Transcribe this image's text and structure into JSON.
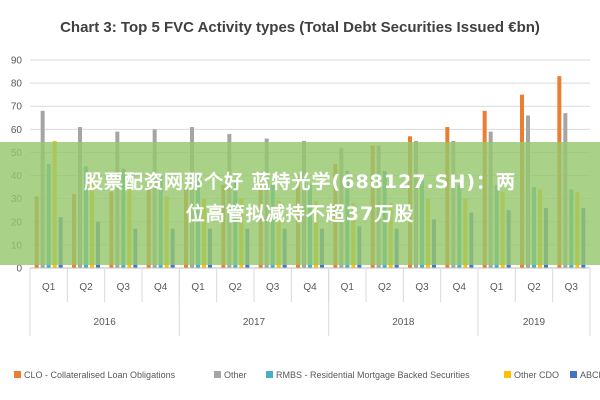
{
  "chart_data": {
    "type": "bar",
    "title": "Chart 3: Top 5 FVC Activity types (Total Debt Securities Issued €bn)",
    "categories": [
      "Q1",
      "Q2",
      "Q3",
      "Q4",
      "Q1",
      "Q2",
      "Q3",
      "Q4",
      "Q1",
      "Q2",
      "Q3",
      "Q4",
      "Q1",
      "Q2",
      "Q3"
    ],
    "groups": [
      {
        "label": "2016",
        "span": 4
      },
      {
        "label": "2017",
        "span": 4
      },
      {
        "label": "2018",
        "span": 4
      },
      {
        "label": "2019",
        "span": 3
      }
    ],
    "ylim": [
      0,
      90
    ],
    "yticks": [
      0,
      10,
      20,
      30,
      40,
      50,
      60,
      70,
      80,
      90
    ],
    "grid": true,
    "legend_position": "bottom",
    "series": [
      {
        "name": "CLO - Collateralised Loan Obligations",
        "color": "#ed7d31",
        "values": [
          31,
          32,
          33,
          34,
          35,
          36,
          38,
          40,
          45,
          53,
          57,
          61,
          68,
          75,
          83
        ]
      },
      {
        "name": "Other",
        "color": "#a5a5a5",
        "values": [
          68,
          61,
          59,
          60,
          61,
          58,
          56,
          55,
          52,
          53,
          55,
          55,
          59,
          66,
          67
        ]
      },
      {
        "name": "RMBS - Residential Mortgage Backed Securities",
        "color": "#4bacc6",
        "values": [
          45,
          44,
          43,
          40,
          40,
          38,
          36,
          36,
          42,
          42,
          38,
          36,
          36,
          35,
          34
        ]
      },
      {
        "name": "Other CDO",
        "color": "#ffc000",
        "values": [
          55,
          40,
          35,
          31,
          30,
          30,
          29,
          29,
          28,
          28,
          30,
          30,
          33,
          34,
          33
        ]
      },
      {
        "name": "ABCP",
        "color": "#4472c4",
        "values": [
          22,
          20,
          17,
          17,
          17,
          17,
          17,
          17,
          18,
          17,
          21,
          24,
          25,
          26,
          26
        ]
      }
    ]
  },
  "overlay": {
    "line1": "股票配资网那个好 蓝特光学(688127.SH)：两",
    "line2": "位高管拟减持不超37万股"
  }
}
